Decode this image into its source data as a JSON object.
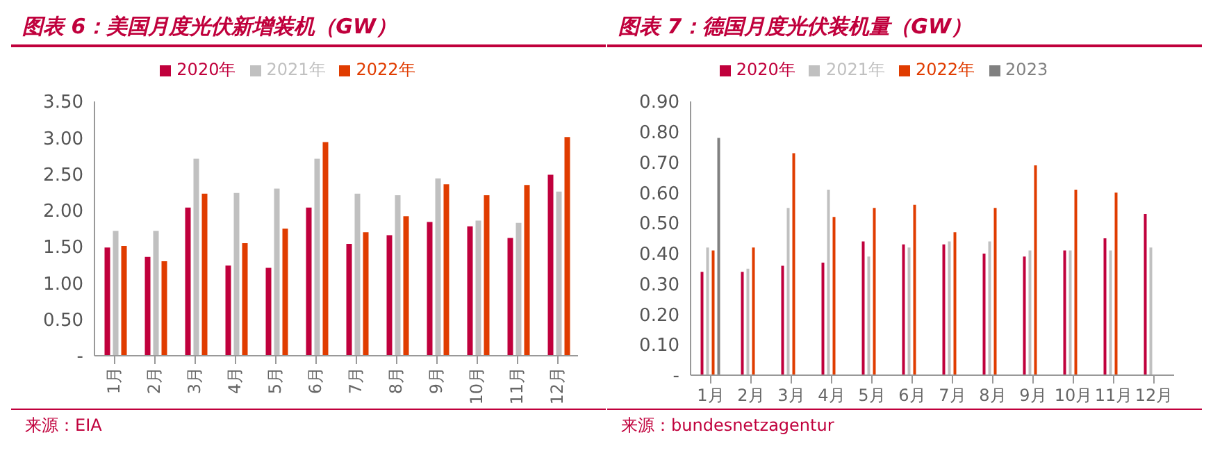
{
  "chart_data": [
    {
      "type": "bar",
      "title": "图表 6：美国月度光伏新增装机（GW）",
      "categories": [
        "1月",
        "2月",
        "3月",
        "4月",
        "5月",
        "6月",
        "7月",
        "8月",
        "9月",
        "10月",
        "11月",
        "12月"
      ],
      "series": [
        {
          "name": "2020年",
          "color": "#c0003c",
          "values": [
            1.49,
            1.36,
            2.04,
            1.24,
            1.21,
            2.04,
            1.54,
            1.66,
            1.84,
            1.78,
            1.62,
            2.49
          ]
        },
        {
          "name": "2021年",
          "color": "#c0c0c0",
          "values": [
            1.72,
            1.72,
            2.71,
            2.24,
            2.3,
            2.71,
            2.23,
            2.21,
            2.44,
            1.86,
            1.83,
            2.26
          ]
        },
        {
          "name": "2022年",
          "color": "#e03c00",
          "values": [
            1.51,
            1.3,
            2.23,
            1.55,
            1.75,
            2.94,
            1.7,
            1.92,
            2.36,
            2.21,
            2.35,
            3.01
          ]
        }
      ],
      "ylim": [
        0,
        3.5
      ],
      "yticks": [
        {
          "value": 0,
          "label": "-"
        },
        {
          "value": 0.5,
          "label": "0.50"
        },
        {
          "value": 1,
          "label": "1.00"
        },
        {
          "value": 1.5,
          "label": "1.50"
        },
        {
          "value": 2,
          "label": "2.00"
        },
        {
          "value": 2.5,
          "label": "2.50"
        },
        {
          "value": 3,
          "label": "3.00"
        },
        {
          "value": 3.5,
          "label": "3.50"
        }
      ],
      "legend": "top",
      "annotations": [
        "来源：EIA"
      ]
    },
    {
      "type": "bar",
      "title": "图表 7：德国月度光伏装机量（GW）",
      "categories": [
        "1月",
        "2月",
        "3月",
        "4月",
        "5月",
        "6月",
        "7月",
        "8月",
        "9月",
        "10月",
        "11月",
        "12月"
      ],
      "series": [
        {
          "name": "2020年",
          "color": "#c0003c",
          "values": [
            0.34,
            0.34,
            0.36,
            0.37,
            0.44,
            0.43,
            0.43,
            0.4,
            0.39,
            0.41,
            0.45,
            0.53
          ]
        },
        {
          "name": "2021年",
          "color": "#c0c0c0",
          "values": [
            0.42,
            0.35,
            0.55,
            0.61,
            0.39,
            0.42,
            0.44,
            0.44,
            0.41,
            0.41,
            0.41,
            0.42
          ]
        },
        {
          "name": "2022年",
          "color": "#e03c00",
          "values": [
            0.41,
            0.42,
            0.73,
            0.52,
            0.55,
            0.56,
            0.47,
            0.55,
            0.69,
            0.61,
            0.6,
            null
          ]
        },
        {
          "name": "2023",
          "color": "#808080",
          "values": [
            0.78,
            null,
            null,
            null,
            null,
            null,
            null,
            null,
            null,
            null,
            null,
            null
          ]
        }
      ],
      "ylim": [
        0,
        0.9
      ],
      "yticks": [
        {
          "value": 0,
          "label": "-"
        },
        {
          "value": 0.1,
          "label": "0.10"
        },
        {
          "value": 0.2,
          "label": "0.20"
        },
        {
          "value": 0.3,
          "label": "0.30"
        },
        {
          "value": 0.4,
          "label": "0.40"
        },
        {
          "value": 0.5,
          "label": "0.50"
        },
        {
          "value": 0.6,
          "label": "0.60"
        },
        {
          "value": 0.7,
          "label": "0.70"
        },
        {
          "value": 0.8,
          "label": "0.80"
        },
        {
          "value": 0.9,
          "label": "0.90"
        }
      ],
      "legend": "top",
      "annotations": [
        "来源：bundesnetzagentur"
      ]
    }
  ]
}
